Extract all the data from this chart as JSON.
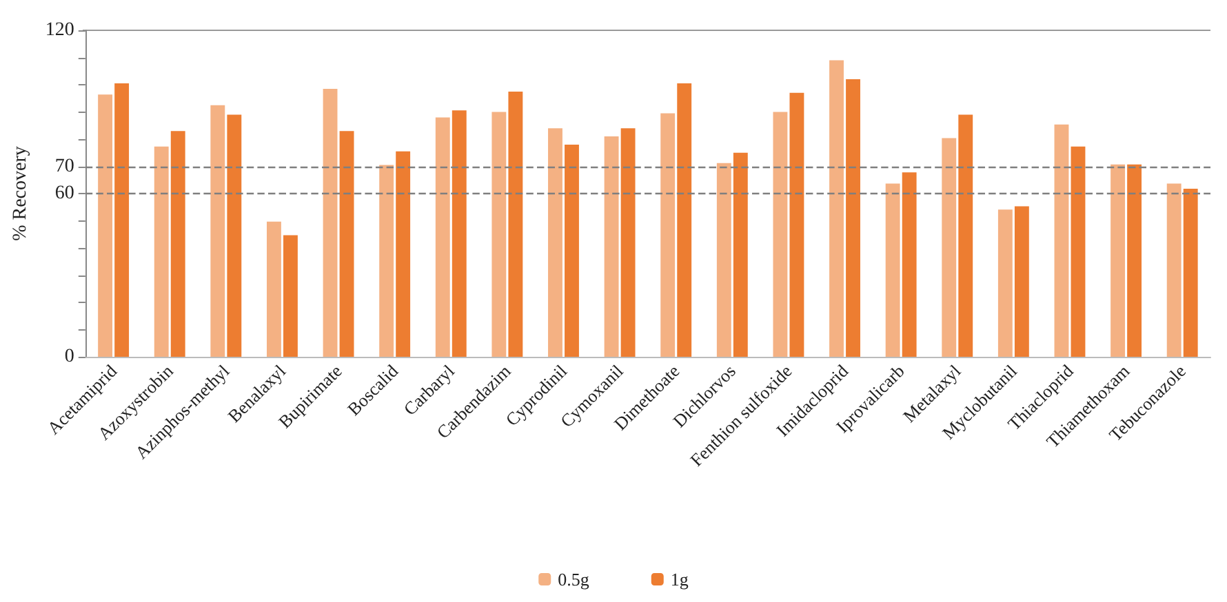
{
  "chart_data": {
    "type": "bar",
    "ylabel": "% Recovery",
    "categories": [
      "Acetamiprid",
      "Azoxystrobin",
      "Azinphos-methyl",
      "Benalaxyl",
      "Bupirimate",
      "Boscalid",
      "Carbaryl",
      "Carbendazim",
      "Cyprodinil",
      "Cymoxanil",
      "Dimethoate",
      "Dichlorvos",
      "Fenthion sulfoxide",
      "Imidacloprid",
      "Iprovalicarb",
      "Metalaxyl",
      "Myclobutanil",
      "Thiacloprid",
      "Thiamethoxam",
      "Tebuconazole"
    ],
    "series": [
      {
        "name": "0.5g",
        "color": "#f4b183",
        "values": [
          96.4,
          77.3,
          92.5,
          49.7,
          98.5,
          70.5,
          88,
          90,
          84,
          81,
          89.5,
          71.2,
          90,
          109,
          63.7,
          80.4,
          54.1,
          85.4,
          70.7,
          63.7
        ]
      },
      {
        "name": "1g",
        "color": "#ed7d31",
        "values": [
          100.5,
          83,
          89,
          44.7,
          83,
          75.5,
          90.6,
          97.5,
          78,
          84,
          100.5,
          75,
          97,
          102,
          67.8,
          89,
          55.3,
          77.3,
          70.7,
          61.8
        ]
      }
    ],
    "ylim": [
      0,
      120
    ],
    "yticks": [
      0,
      {
        "value": 10,
        "label": null
      },
      {
        "value": 20,
        "label": null
      },
      {
        "value": 30,
        "label": null
      },
      {
        "value": 40,
        "label": null
      },
      {
        "value": 50,
        "label": null
      },
      60,
      70,
      {
        "value": 80,
        "label": null
      },
      {
        "value": 90,
        "label": null
      },
      {
        "value": 100,
        "label": null
      },
      {
        "value": 110,
        "label": null
      },
      120
    ],
    "ref_lines": [
      {
        "axis": "y",
        "value": 70,
        "label": null,
        "color": "#7f7f7f",
        "line_style": "dashed"
      },
      {
        "axis": "y",
        "value": 60,
        "label": null,
        "color": "#7f7f7f",
        "line_style": "dashed"
      }
    ],
    "grid": false,
    "legend": "bottom"
  }
}
